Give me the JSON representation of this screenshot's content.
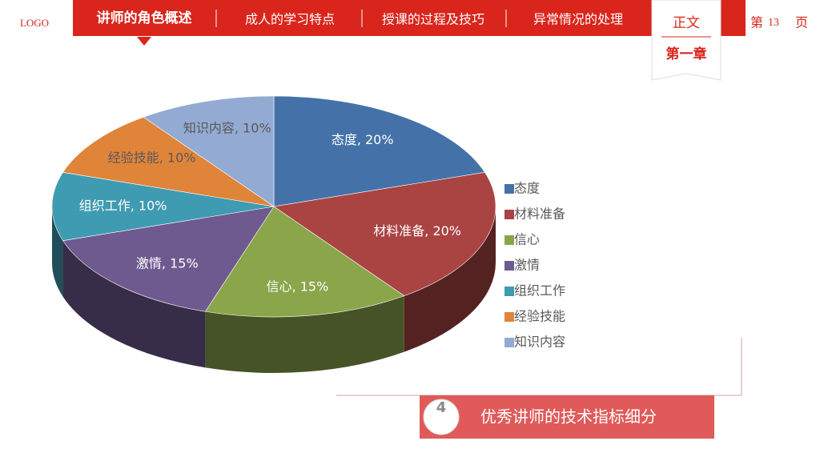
{
  "header": {
    "logo": "LOGO",
    "nav": [
      "讲师的角色概述",
      "成人的学习特点",
      "授课的过程及技巧",
      "异常情况的处理"
    ],
    "section": "正文",
    "chapter": "第一章",
    "page_prefix": "第",
    "page_number": "13",
    "page_suffix": "页"
  },
  "chart_data": {
    "type": "pie",
    "categories": [
      "态度",
      "材料准备",
      "信心",
      "激情",
      "组织工作",
      "经验技能",
      "知识内容"
    ],
    "values": [
      20,
      20,
      15,
      15,
      10,
      10,
      10
    ],
    "value_labels": [
      "态度, 20%",
      "材料准备, 20%",
      "信心, 15%",
      "激情, 15%",
      "组织工作, 10%",
      "经验技能, 10%",
      "知识内容, 10%"
    ],
    "colors": [
      "#4472a8",
      "#aa4443",
      "#8ba54b",
      "#6e5a8f",
      "#3f9bb1",
      "#e0843a",
      "#93abd3"
    ],
    "label_colors": [
      "#ffffff",
      "#ffffff",
      "#ffffff",
      "#ffffff",
      "#ffffff",
      "#595959",
      "#595959"
    ],
    "legend": "right"
  },
  "footer": {
    "number": "4",
    "title": "优秀讲师的技术指标细分"
  }
}
